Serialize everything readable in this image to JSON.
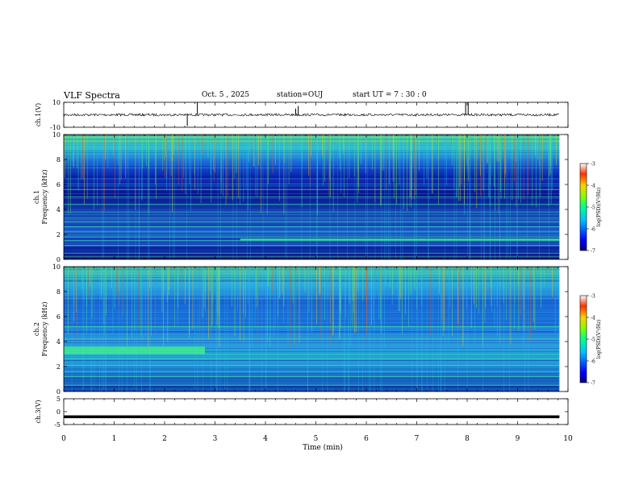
{
  "header": {
    "title": "VLF Spectra",
    "date": "Oct. 5 , 2025",
    "station": "station=OUJ",
    "start": "start UT = 7 : 30 : 0"
  },
  "chart_data": [
    {
      "type": "line",
      "name": "ch1-waveform",
      "ylabel": "ch.1(V)",
      "ylim": [
        -10,
        10
      ],
      "yticks": [
        "10",
        "-10"
      ],
      "xlim": [
        0,
        10
      ],
      "x_max_data": 9.83,
      "baseline": 0,
      "spikes": [
        {
          "x": 2.45,
          "y": -9
        },
        {
          "x": 2.65,
          "y": 10
        },
        {
          "x": 4.6,
          "y": 5
        },
        {
          "x": 4.65,
          "y": 7
        },
        {
          "x": 7.97,
          "y": 10
        },
        {
          "x": 8.02,
          "y": 10
        }
      ]
    },
    {
      "type": "heatmap",
      "name": "ch1-spectrogram",
      "ylabel_top": "ch.1",
      "ylabel": "Frequency (kHz)",
      "ylim": [
        0,
        10
      ],
      "yticks": [
        "0",
        "2",
        "4",
        "6",
        "8",
        "10"
      ],
      "xlim": [
        0,
        10
      ],
      "x_max_data": 9.83,
      "colorbar": {
        "label": "log(PSD)(V²/Hz)",
        "range": [
          -7,
          -3
        ],
        "ticks": [
          "-3",
          "-4",
          "-5",
          "-6",
          "-7"
        ]
      },
      "lines_khz": [
        0.2,
        0.5,
        1.1,
        1.5,
        1.8,
        2.2,
        2.6,
        3.0,
        3.3,
        3.8,
        4.4,
        5.0,
        5.6
      ],
      "feature_line": {
        "x_start": 3.5,
        "x_end": 9.83,
        "khz": 1.6
      }
    },
    {
      "type": "heatmap",
      "name": "ch2-spectrogram",
      "ylabel_top": "ch.2",
      "ylabel": "Frequency (kHz)",
      "ylim": [
        0,
        10
      ],
      "yticks": [
        "0",
        "2",
        "4",
        "6",
        "8",
        "10"
      ],
      "xlim": [
        0,
        10
      ],
      "x_max_data": 9.83,
      "colorbar": {
        "label": "log(PSD)(V²/Hz)",
        "range": [
          -7,
          -3
        ],
        "ticks": [
          "-3",
          "-4",
          "-5",
          "-6",
          "-7"
        ]
      },
      "band": {
        "x_start": 0,
        "x_end": 2.8,
        "khz_low": 3.0,
        "khz_high": 3.6
      },
      "lines_khz": [
        0.5,
        1.2,
        1.6,
        2.1,
        2.6,
        3.0,
        4.2,
        5.2
      ]
    },
    {
      "type": "line",
      "name": "ch3-waveform",
      "ylabel": "ch.3(V)",
      "ylim": [
        -5,
        5
      ],
      "yticks": [
        "5",
        "0",
        "-5"
      ],
      "xlim": [
        0,
        10
      ],
      "x_max_data": 9.83,
      "baseline": -2
    }
  ],
  "xaxis": {
    "label": "Time (min)",
    "ticks": [
      "0",
      "1",
      "2",
      "3",
      "4",
      "5",
      "6",
      "7",
      "8",
      "9",
      "10"
    ]
  }
}
